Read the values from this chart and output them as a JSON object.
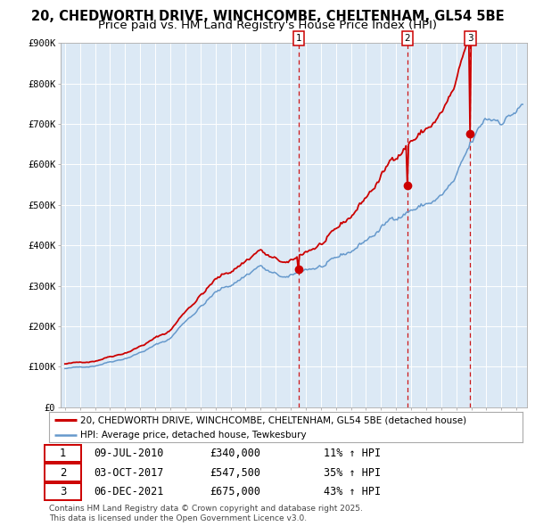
{
  "title_line1": "20, CHEDWORTH DRIVE, WINCHCOMBE, CHELTENHAM, GL54 5BE",
  "title_line2": "Price paid vs. HM Land Registry's House Price Index (HPI)",
  "legend_label_red": "20, CHEDWORTH DRIVE, WINCHCOMBE, CHELTENHAM, GL54 5BE (detached house)",
  "legend_label_blue": "HPI: Average price, detached house, Tewkesbury",
  "transactions": [
    {
      "num": 1,
      "date": "09-JUL-2010",
      "price": 340000,
      "price_str": "£340,000",
      "pct": "11%",
      "dir": "↑",
      "label": "HPI",
      "decimal_date": 2010.52
    },
    {
      "num": 2,
      "date": "03-OCT-2017",
      "price": 547500,
      "price_str": "£547,500",
      "pct": "35%",
      "dir": "↑",
      "label": "HPI",
      "decimal_date": 2017.75
    },
    {
      "num": 3,
      "date": "06-DEC-2021",
      "price": 675000,
      "price_str": "£675,000",
      "pct": "43%",
      "dir": "↑",
      "label": "HPI",
      "decimal_date": 2021.93
    }
  ],
  "ylim": [
    0,
    900000
  ],
  "ytick_values": [
    0,
    100000,
    200000,
    300000,
    400000,
    500000,
    600000,
    700000,
    800000,
    900000
  ],
  "ytick_labels": [
    "£0",
    "£100K",
    "£200K",
    "£300K",
    "£400K",
    "£500K",
    "£600K",
    "£700K",
    "£800K",
    "£900K"
  ],
  "xlim_start": 1994.7,
  "xlim_end": 2025.7,
  "background_color": "#ffffff",
  "plot_bg_color": "#dce9f5",
  "grid_color": "#ffffff",
  "red_color": "#cc0000",
  "blue_color": "#6699cc",
  "footer_text1": "Contains HM Land Registry data © Crown copyright and database right 2025.",
  "footer_text2": "This data is licensed under the Open Government Licence v3.0.",
  "title_fontsize": 10.5,
  "subtitle_fontsize": 9.5,
  "tick_fontsize": 7.5,
  "legend_fontsize": 7.5,
  "table_fontsize": 8.5,
  "footer_fontsize": 6.5
}
